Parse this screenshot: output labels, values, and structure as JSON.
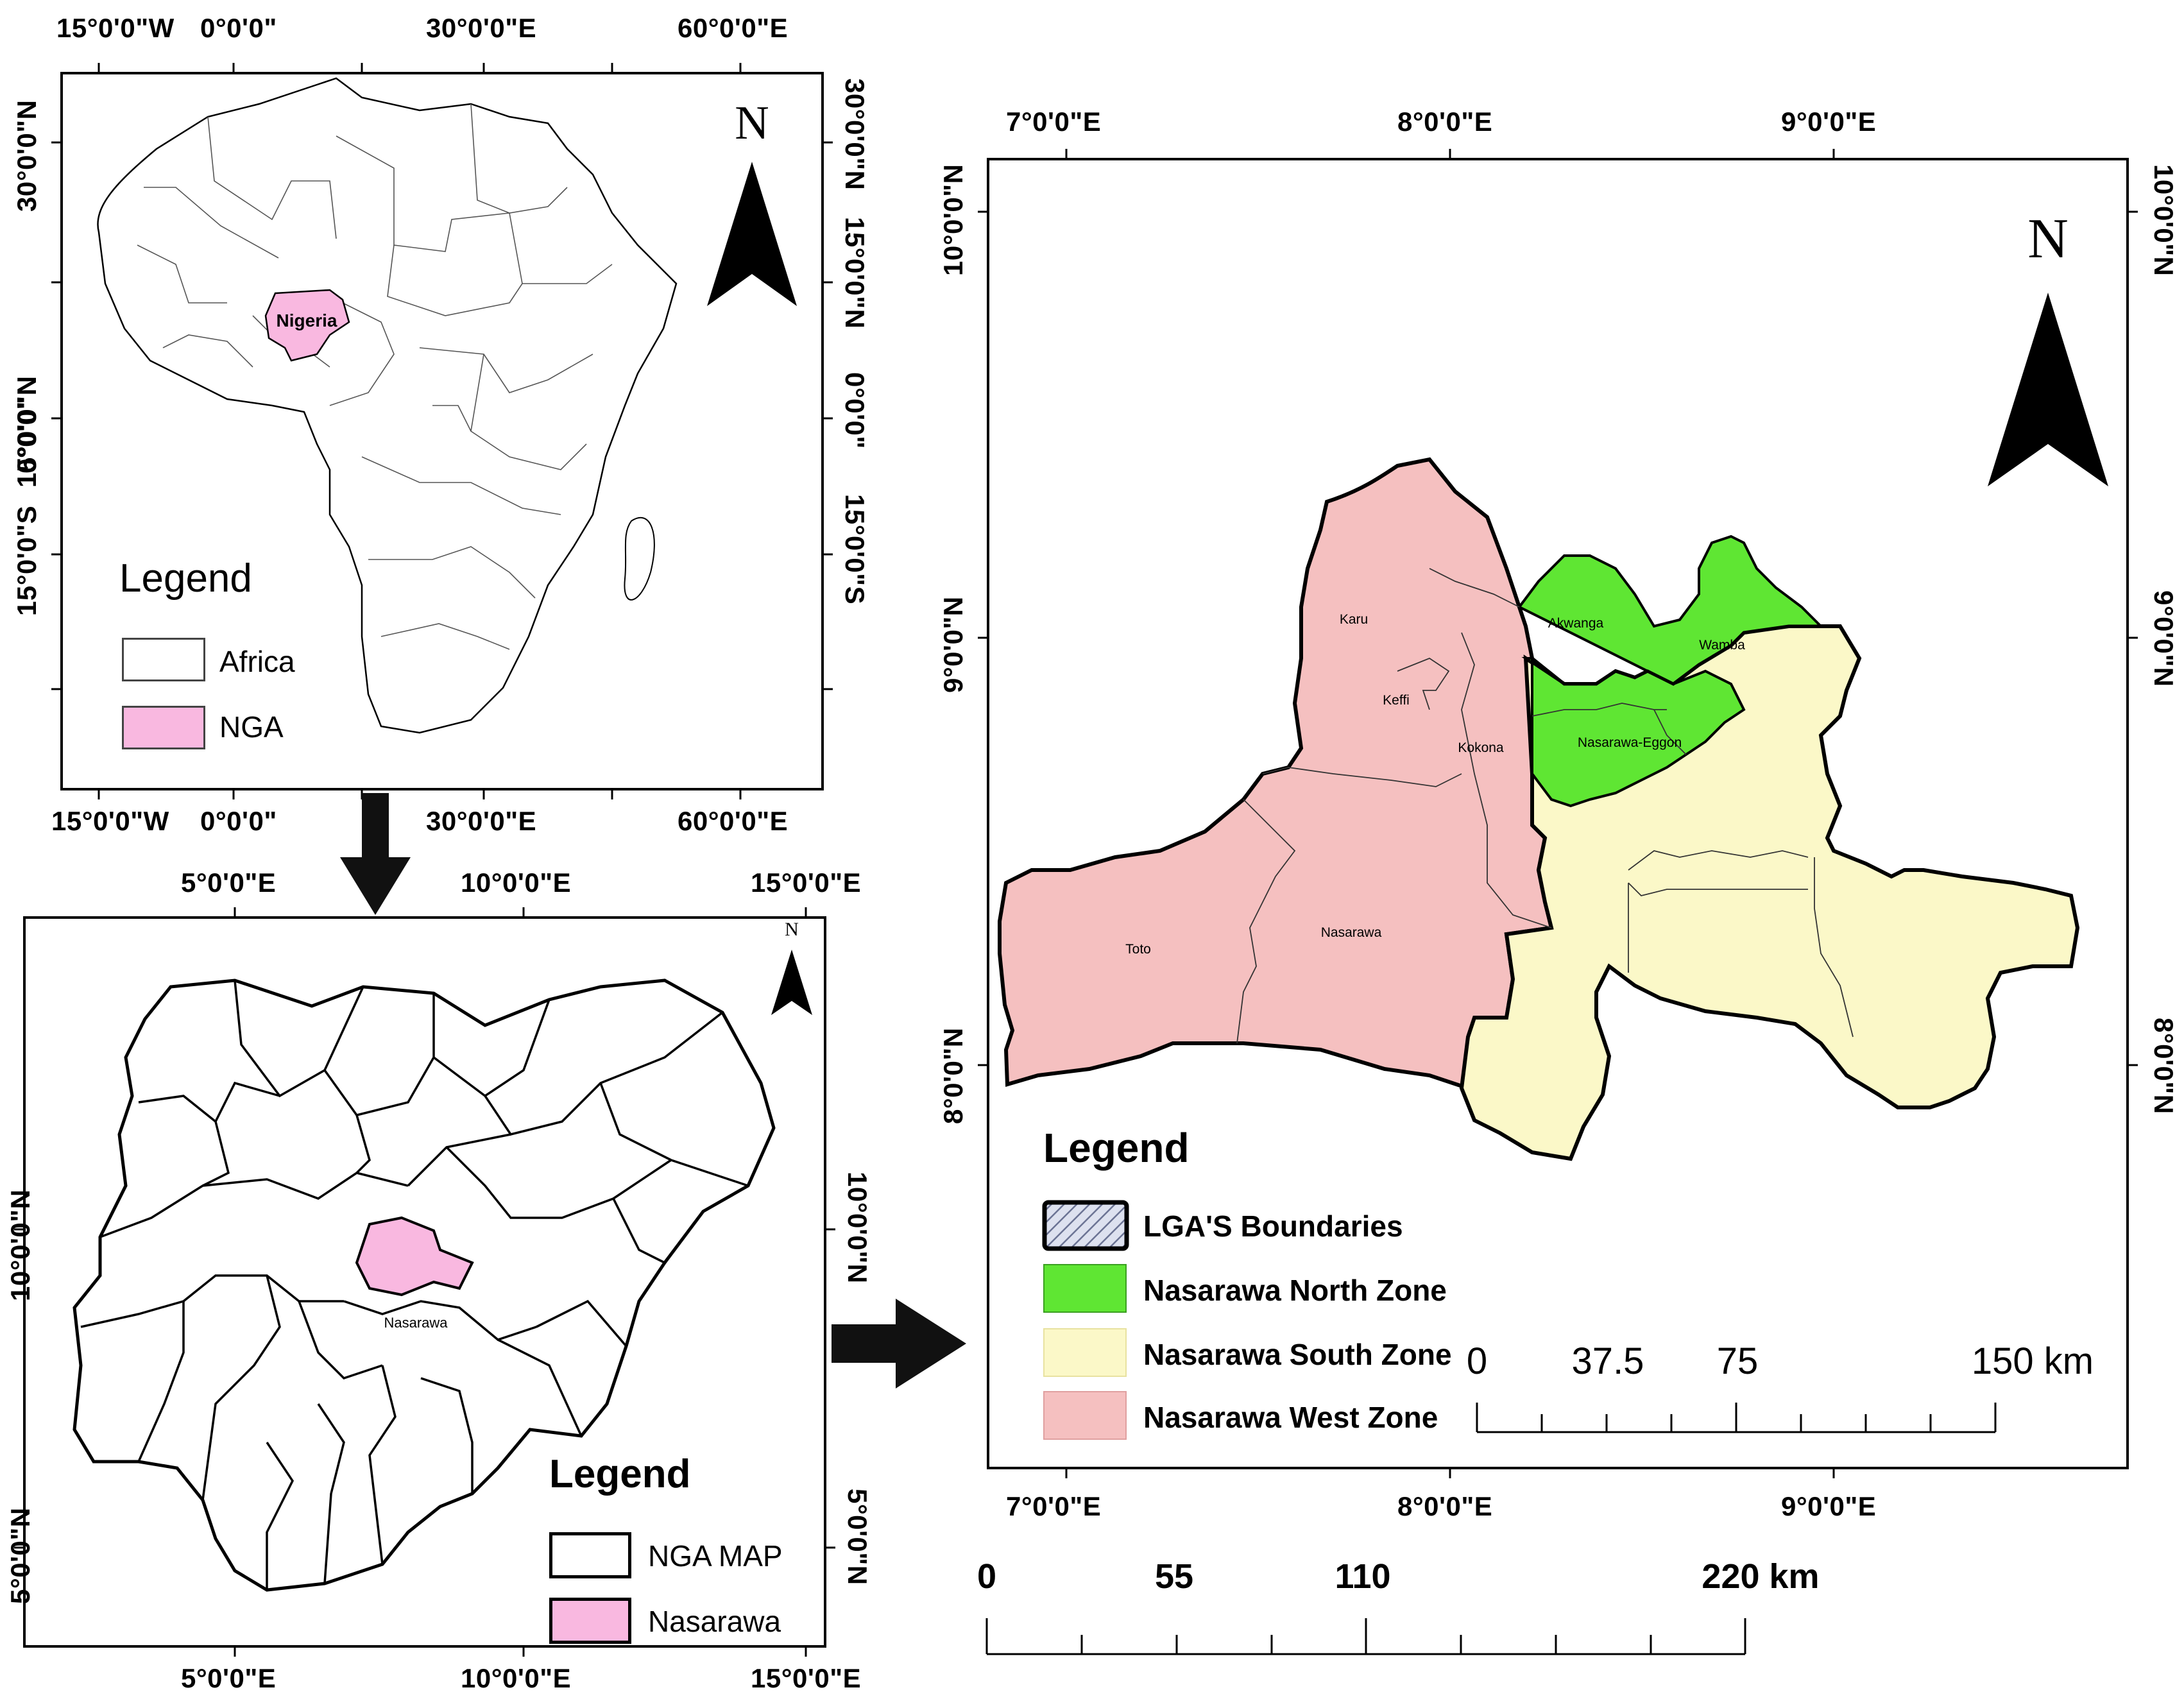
{
  "africa_map": {
    "top_coords": [
      "15°0'0\"W",
      "0°0'0\"",
      "30°0'0\"E",
      "60°0'0\"E"
    ],
    "bottom_coords": [
      "15°0'0\"W",
      "0°0'0\"",
      "30°0'0\"E",
      "60°0'0\"E"
    ],
    "left_coords": [
      "30°0'0\"N",
      "15°0'0\"N",
      "0°0'0\"",
      "15°0'0\"S"
    ],
    "right_coords": [
      "30°0'0\"N",
      "15°0'0\"N",
      "0°0'0\"",
      "15°0'0\"S"
    ],
    "north_label": "N",
    "country_label": "Nigeria",
    "highlight_color": "#f9b8e0",
    "legend": {
      "title": "Legend",
      "items": [
        {
          "label": "Africa",
          "color": "#ffffff"
        },
        {
          "label": "NGA",
          "color": "#f9b8e0"
        }
      ]
    }
  },
  "nigeria_map": {
    "top_coords": [
      "5°0'0\"E",
      "10°0'0\"E",
      "15°0'0\"E"
    ],
    "bottom_coords": [
      "5°0'0\"E",
      "10°0'0\"E",
      "15°0'0\"E"
    ],
    "left_coords": [
      "10°0'0\"N",
      "5°0'0\"N"
    ],
    "right_coords": [
      "10°0'0\"N",
      "5°0'0\"N"
    ],
    "north_label": "N",
    "state_label": "Nasarawa",
    "highlight_color": "#f9b8e0",
    "legend": {
      "title": "Legend",
      "items": [
        {
          "label": "NGA MAP",
          "color": "#ffffff"
        },
        {
          "label": "Nasarawa",
          "color": "#f9b8e0"
        }
      ]
    }
  },
  "nasarawa_map": {
    "top_coords": [
      "7°0'0\"E",
      "8°0'0\"E",
      "9°0'0\"E"
    ],
    "bottom_coords": [
      "7°0'0\"E",
      "8°0'0\"E",
      "9°0'0\"E"
    ],
    "left_coords": [
      "10°0'0\"N",
      "9°0'0\"N",
      "8°0'0\"N"
    ],
    "right_coords": [
      "10°0'0\"N",
      "9°0'0\"N",
      "8°0'0\"N"
    ],
    "north_label": "N",
    "lga_labels": [
      "Karu",
      "Keffi",
      "Kokona",
      "Akwanga",
      "Wamba",
      "Nasarawa-Eggon",
      "Toto",
      "Nasarawa"
    ],
    "legend": {
      "title": "Legend",
      "items": [
        {
          "label": "LGA'S Boundaries",
          "color": "#c8cde0",
          "pattern": "hatched"
        },
        {
          "label": "Nasarawa North Zone",
          "color": "#5fe633"
        },
        {
          "label": "Nasarawa South Zone",
          "color": "#fbf8c8"
        },
        {
          "label": "Nasarawa West Zone",
          "color": "#f5c0c0"
        }
      ]
    },
    "scale_bar": {
      "labels": [
        "0",
        "37.5",
        "75",
        "150 km"
      ]
    }
  },
  "bottom_scale_bar": {
    "labels": [
      "0",
      "55",
      "110",
      "220 km"
    ]
  }
}
